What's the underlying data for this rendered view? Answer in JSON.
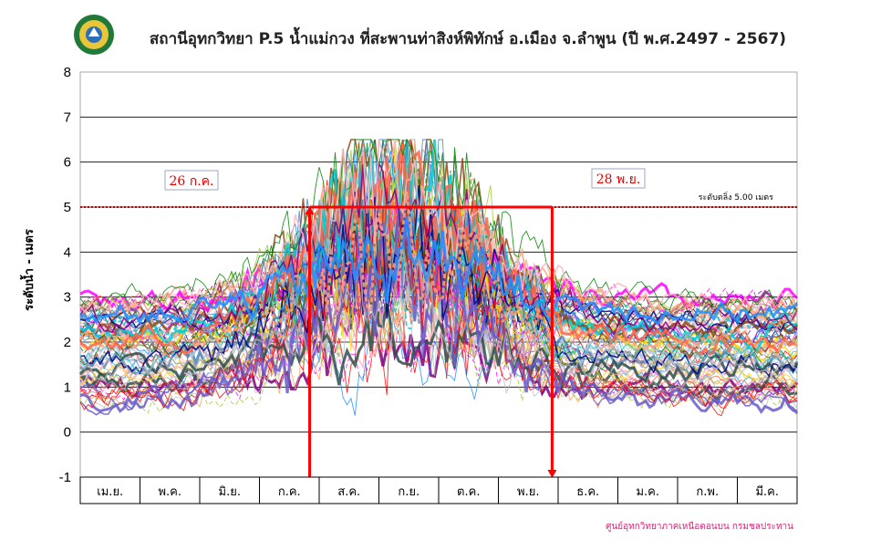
{
  "chart_data": {
    "type": "line",
    "title": "สถานีอุทกวิทยา P.5 น้ำแม่กวง ที่สะพานท่าสิงห์พิทักษ์ อ.เมือง จ.ลำพูน (ปี พ.ศ.2497 - 2567)",
    "ylabel": "ระดับน้ำ - เมตร",
    "xlabel": "",
    "ylim": [
      -1,
      8
    ],
    "yticks": [
      "-1",
      "0",
      "1",
      "2",
      "3",
      "4",
      "5",
      "6",
      "7",
      "8"
    ],
    "categories": [
      "เม.ย.",
      "พ.ค.",
      "มิ.ย.",
      "ก.ค.",
      "ส.ค.",
      "ก.ย.",
      "ต.ค.",
      "พ.ย.",
      "ธ.ค.",
      "ม.ค.",
      "ก.พ.",
      "มี.ค."
    ],
    "grid": true,
    "critical_level": {
      "value": 5,
      "label": "ระดับตลิ่ง 5.00 เมตร"
    },
    "period_markers": [
      {
        "label": "26 ก.ค.",
        "month_index": 3,
        "day_fraction": 0.84
      },
      {
        "label": "28 พ.ย.",
        "month_index": 7,
        "day_fraction": 0.9
      }
    ],
    "series_note": "annual hydrographs 2497-2567 (individual values not legible)",
    "credit": "ศูนย์อุทกวิทยาภาคเหนือตอนบน กรมชลประทาน",
    "colors": {
      "critical": "#c00000",
      "marker": "#ff0000",
      "grid": "#000000",
      "credit": "#e0207a",
      "palette": [
        "#00008b",
        "#ff00ff",
        "#008000",
        "#ff0000",
        "#00ced1",
        "#800080",
        "#ffa07a",
        "#a9a9a9",
        "#ffb6c1",
        "#1e90ff",
        "#9acd32",
        "#8b4513",
        "#ffd700",
        "#4682b4",
        "#c0c0c0",
        "#b0c4de",
        "#f4a460",
        "#2f4f4f",
        "#ff6347",
        "#6a5acd"
      ]
    }
  },
  "logo": {
    "caption": "กรมชลประทาน"
  }
}
